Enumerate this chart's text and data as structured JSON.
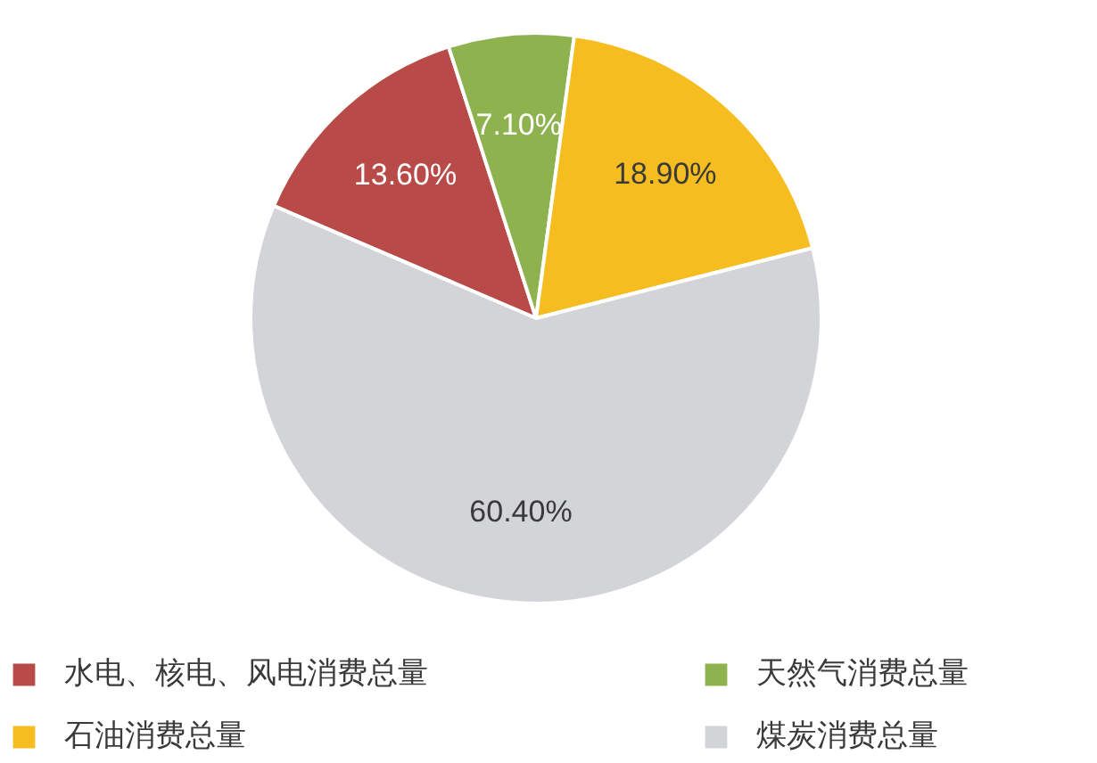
{
  "chart_data": {
    "type": "pie",
    "categories": [
      "水电、核电、风电消费总量",
      "天然气消费总量",
      "石油消费总量",
      "煤炭消费总量"
    ],
    "values": [
      13.6,
      7.1,
      18.9,
      60.4
    ],
    "colors": [
      "#b84b48",
      "#8db24e",
      "#f5bd1f",
      "#d3d4d8"
    ],
    "value_labels": [
      "13.60%",
      "7.10%",
      "18.90%",
      "60.40%"
    ],
    "legend": "bottom"
  }
}
